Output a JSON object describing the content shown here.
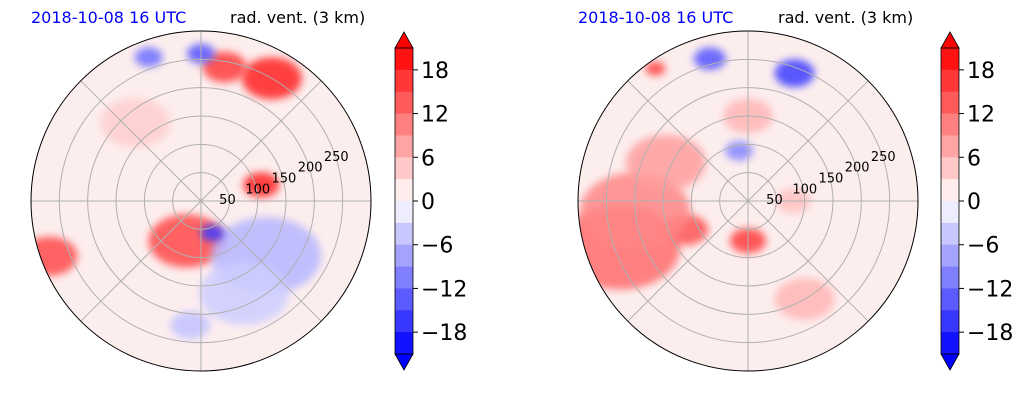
{
  "colors": {
    "date_title": "#0000ff",
    "positive_max": "#ff0000",
    "negative_max": "#0000ff",
    "neutral": "#ffffff",
    "grid": "#b0b0b0"
  },
  "chart_data": [
    {
      "type": "heatmap",
      "projection": "polar",
      "title_left": "2018-10-08 16 UTC",
      "title_right": "rad. vent. (3 km)",
      "radial_ticks": [
        "50",
        "100",
        "150",
        "200",
        "250"
      ],
      "radial_values": [
        50,
        100,
        150,
        200,
        250
      ],
      "rmax": 300,
      "angular_gridlines_deg": [
        0,
        45,
        90,
        135,
        180,
        225,
        270,
        315
      ],
      "grid": true,
      "colorbar": {
        "placement": "right",
        "range": [
          -21,
          21
        ],
        "ticks": [
          "18",
          "12",
          "6",
          "0",
          "−6",
          "−12",
          "−18"
        ],
        "tick_values": [
          18,
          12,
          6,
          0,
          -6,
          -12,
          -18
        ],
        "extend": "both"
      },
      "features": [
        {
          "r": 75,
          "theta": 200,
          "value": 15,
          "size": 38
        },
        {
          "r": 110,
          "theta": 75,
          "value": 18,
          "size": 18
        },
        {
          "r": 250,
          "theta": 30,
          "value": 18,
          "size": 30
        },
        {
          "r": 240,
          "theta": 10,
          "value": 16,
          "size": 22
        },
        {
          "r": 260,
          "theta": 0,
          "value": -14,
          "size": 14
        },
        {
          "r": 150,
          "theta": 130,
          "value": -6,
          "size": 55
        },
        {
          "r": 180,
          "theta": 155,
          "value": -4,
          "size": 45
        },
        {
          "r": 285,
          "theta": 250,
          "value": 15,
          "size": 28
        },
        {
          "r": 270,
          "theta": 340,
          "value": -12,
          "size": 14
        },
        {
          "r": 60,
          "theta": 160,
          "value": -16,
          "size": 12
        },
        {
          "r": 220,
          "theta": 185,
          "value": -5,
          "size": 20
        },
        {
          "r": 180,
          "theta": 320,
          "value": 4,
          "size": 35
        }
      ]
    },
    {
      "type": "heatmap",
      "projection": "polar",
      "title_left": "2018-10-08 16 UTC",
      "title_right": "rad. vent. (3 km)",
      "radial_ticks": [
        "50",
        "100",
        "150",
        "200",
        "250"
      ],
      "radial_values": [
        50,
        100,
        150,
        200,
        250
      ],
      "rmax": 300,
      "angular_gridlines_deg": [
        0,
        45,
        90,
        135,
        180,
        225,
        270,
        315
      ],
      "grid": true,
      "colorbar": {
        "placement": "right",
        "range": [
          -21,
          21
        ],
        "ticks": [
          "18",
          "12",
          "6",
          "0",
          "−6",
          "−12",
          "−18"
        ],
        "tick_values": [
          18,
          12,
          6,
          0,
          -6,
          -12,
          -18
        ],
        "extend": "both"
      },
      "features": [
        {
          "r": 70,
          "theta": 180,
          "value": 16,
          "size": 18
        },
        {
          "r": 120,
          "theta": 245,
          "value": 14,
          "size": 22
        },
        {
          "r": 240,
          "theta": 250,
          "value": 12,
          "size": 60
        },
        {
          "r": 200,
          "theta": 265,
          "value": 10,
          "size": 55
        },
        {
          "r": 160,
          "theta": 295,
          "value": 8,
          "size": 40
        },
        {
          "r": 240,
          "theta": 20,
          "value": -16,
          "size": 20
        },
        {
          "r": 260,
          "theta": 345,
          "value": -14,
          "size": 16
        },
        {
          "r": 285,
          "theta": 325,
          "value": 16,
          "size": 10
        },
        {
          "r": 90,
          "theta": 350,
          "value": -10,
          "size": 14
        },
        {
          "r": 200,
          "theta": 150,
          "value": 6,
          "size": 30
        },
        {
          "r": 80,
          "theta": 90,
          "value": 5,
          "size": 18
        },
        {
          "r": 150,
          "theta": 0,
          "value": 6,
          "size": 25
        }
      ]
    }
  ]
}
